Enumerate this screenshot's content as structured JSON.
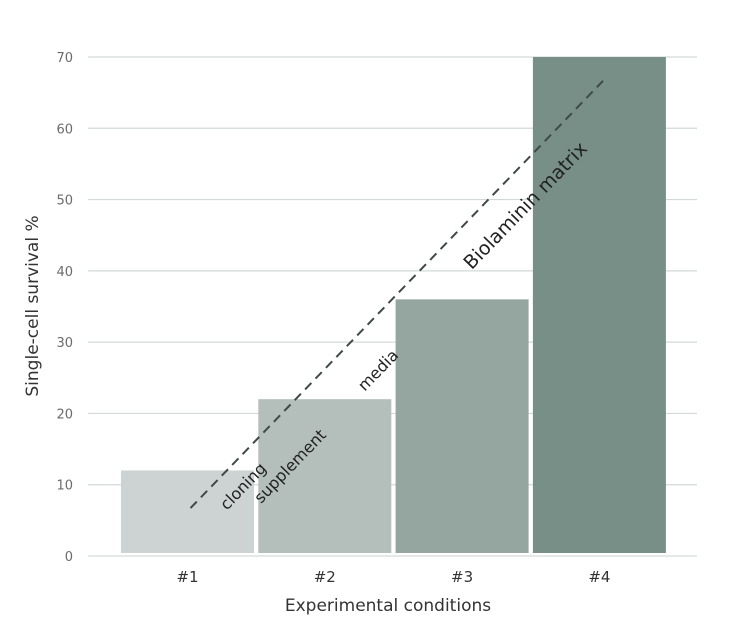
{
  "chart_data": {
    "type": "bar",
    "title": "",
    "xlabel": "Experimental conditions",
    "ylabel": "Single-cell survival %",
    "ylim": [
      0,
      70
    ],
    "yticks": [
      0,
      10,
      20,
      30,
      40,
      50,
      60,
      70
    ],
    "grid": true,
    "categories": [
      "#1",
      "#2",
      "#3",
      "#4"
    ],
    "values": [
      12,
      22,
      36,
      70
    ],
    "colors": [
      "#cdd3d2",
      "#b4bfbc",
      "#95a59f",
      "#788f88"
    ],
    "trend_line": {
      "style": "dashed",
      "color": "#3e4a47",
      "from": [
        1,
        7
      ],
      "to": [
        4,
        67
      ]
    },
    "annotations": {
      "cloning": "cloning",
      "supplement": "supplement",
      "media": "media",
      "biolaminin": "Biolaminin matrix"
    }
  }
}
